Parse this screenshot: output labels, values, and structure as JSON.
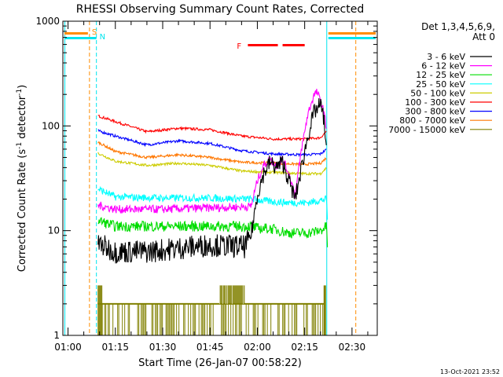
{
  "chart_data": {
    "type": "line",
    "title": "RHESSI Observing Summary Count Rates, Corrected",
    "xlabel": "Start Time (26-Jan-07 00:58:22)",
    "ylabel_main": "Corrected Count Rate (s",
    "ylabel_sup1": "-1",
    "ylabel_mid": " detector",
    "ylabel_sup2": "-1",
    "ylabel_end": ")",
    "footer_date": "13-Oct-2021 23:52",
    "y_scale": "log",
    "ylim": [
      1,
      1000
    ],
    "xlim_minutes": [
      58.37,
      158.0
    ],
    "x_ticks": [
      {
        "label": "01:00",
        "minutes": 60
      },
      {
        "label": "01:15",
        "minutes": 75
      },
      {
        "label": "01:30",
        "minutes": 90
      },
      {
        "label": "01:45",
        "minutes": 105
      },
      {
        "label": "02:00",
        "minutes": 120
      },
      {
        "label": "02:15",
        "minutes": 135
      },
      {
        "label": "02:30",
        "minutes": 150
      }
    ],
    "y_ticks": [
      {
        "label": "1",
        "value": 1
      },
      {
        "label": "10",
        "value": 10
      },
      {
        "label": "100",
        "value": 100
      },
      {
        "label": "1000",
        "value": 1000
      }
    ],
    "legend_header": [
      "Det 1,3,4,5,6,9,",
      "Att 0"
    ],
    "legend_position": "right",
    "markers": {
      "S_label": "S",
      "N_label": "N",
      "F_label": "F"
    },
    "verticals_minutes": {
      "night_end": 59.0,
      "saa_start": 66.8,
      "night_start_2": 69.0,
      "data_end": 142.0,
      "saa_end": 151.2
    },
    "flare_segments_minutes": [
      [
        117.0,
        126.5
      ],
      [
        128.0,
        135.0
      ]
    ],
    "series": [
      {
        "name": "3 - 6 keV",
        "color": "#000000",
        "points": [
          [
            69.5,
            7.5
          ],
          [
            75,
            6.3
          ],
          [
            85,
            6.3
          ],
          [
            95,
            6.8
          ],
          [
            105,
            7.3
          ],
          [
            116,
            7.0
          ],
          [
            118,
            9.0
          ],
          [
            120,
            22
          ],
          [
            122,
            35
          ],
          [
            124,
            45
          ],
          [
            126,
            40
          ],
          [
            128,
            45
          ],
          [
            130,
            30
          ],
          [
            132,
            20
          ],
          [
            134,
            40
          ],
          [
            136,
            80
          ],
          [
            138,
            135
          ],
          [
            140,
            160
          ],
          [
            141,
            120
          ],
          [
            142,
            60
          ]
        ]
      },
      {
        "name": "6 - 12 keV",
        "color": "#ff00ff",
        "points": [
          [
            69.5,
            17.5
          ],
          [
            75,
            16
          ],
          [
            90,
            16
          ],
          [
            105,
            16.5
          ],
          [
            118,
            17
          ],
          [
            120,
            30
          ],
          [
            122,
            42
          ],
          [
            124,
            48
          ],
          [
            126,
            42
          ],
          [
            128,
            48
          ],
          [
            130,
            35
          ],
          [
            132,
            22
          ],
          [
            134,
            60
          ],
          [
            136,
            130
          ],
          [
            138,
            200
          ],
          [
            139,
            210
          ],
          [
            141,
            140
          ],
          [
            142,
            90
          ]
        ]
      },
      {
        "name": "12 - 25 keV",
        "color": "#00dd00",
        "points": [
          [
            69.5,
            12.5
          ],
          [
            75,
            11
          ],
          [
            90,
            11
          ],
          [
            105,
            11
          ],
          [
            118,
            11
          ],
          [
            120,
            10.5
          ],
          [
            124,
            10.5
          ],
          [
            130,
            9.5
          ],
          [
            136,
            9.5
          ],
          [
            140,
            10
          ],
          [
            142,
            11
          ],
          [
            142.3,
            6
          ]
        ]
      },
      {
        "name": "25 - 50 keV",
        "color": "#00ffff",
        "points": [
          [
            69.5,
            25
          ],
          [
            75,
            21
          ],
          [
            90,
            20.5
          ],
          [
            105,
            20.5
          ],
          [
            118,
            20
          ],
          [
            124,
            19
          ],
          [
            130,
            18.5
          ],
          [
            136,
            18.5
          ],
          [
            142,
            20
          ],
          [
            142.3,
            10
          ]
        ]
      },
      {
        "name": "50 - 100 keV",
        "color": "#cccc00",
        "points": [
          [
            69.5,
            55
          ],
          [
            75,
            46
          ],
          [
            85,
            42
          ],
          [
            95,
            44
          ],
          [
            105,
            42
          ],
          [
            115,
            37
          ],
          [
            125,
            36
          ],
          [
            135,
            35
          ],
          [
            140,
            35
          ],
          [
            142,
            40
          ]
        ]
      },
      {
        "name": "100 - 300 keV",
        "color": "#ff0000",
        "points": [
          [
            69.5,
            125
          ],
          [
            75,
            110
          ],
          [
            85,
            88
          ],
          [
            95,
            95
          ],
          [
            105,
            92
          ],
          [
            115,
            80
          ],
          [
            125,
            75
          ],
          [
            135,
            75
          ],
          [
            140,
            77
          ],
          [
            142,
            90
          ]
        ]
      },
      {
        "name": "300 - 800 keV",
        "color": "#0000ff",
        "points": [
          [
            69.5,
            90
          ],
          [
            75,
            80
          ],
          [
            85,
            66
          ],
          [
            95,
            72
          ],
          [
            105,
            68
          ],
          [
            115,
            58
          ],
          [
            125,
            54
          ],
          [
            135,
            53
          ],
          [
            140,
            54
          ],
          [
            142,
            60
          ]
        ]
      },
      {
        "name": "800 - 7000 keV",
        "color": "#ff7700",
        "points": [
          [
            69.5,
            70
          ],
          [
            75,
            57
          ],
          [
            85,
            50
          ],
          [
            95,
            53
          ],
          [
            105,
            50
          ],
          [
            115,
            45
          ],
          [
            125,
            44
          ],
          [
            135,
            43
          ],
          [
            140,
            44
          ],
          [
            142,
            50
          ]
        ]
      },
      {
        "name": "7000 - 15000 keV",
        "color": "#808000",
        "points": []
      }
    ]
  }
}
